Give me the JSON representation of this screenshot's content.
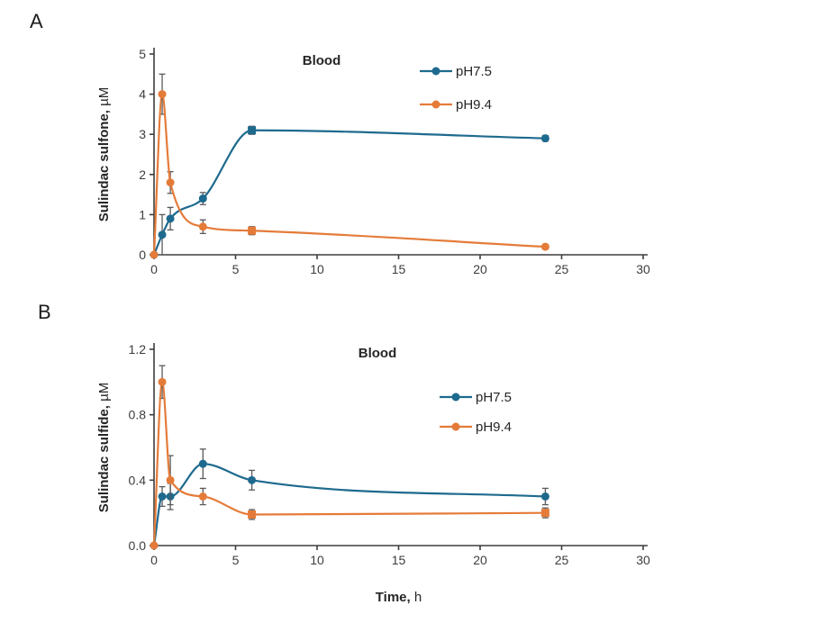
{
  "panels": [
    {
      "letter": "A"
    },
    {
      "letter": "B"
    }
  ],
  "colors": {
    "series_ph75": "#1e6a8e",
    "series_ph94": "#e57b39",
    "axis": "#3d3d3d",
    "error_bar": "#5a5a5a",
    "tick_text": "#3d3d3d",
    "title_text": "#262626",
    "background": "#ffffff"
  },
  "chart_data": [
    {
      "type": "line",
      "panel": "A",
      "title": "Blood",
      "ylabel_bold": "Sulindac sulfone,",
      "ylabel_regular": " µM",
      "xlabel_bold": "",
      "xlabel_regular": "",
      "xlim": [
        0,
        30
      ],
      "ylim": [
        0,
        5
      ],
      "xticks": [
        0,
        5,
        10,
        15,
        20,
        25,
        30
      ],
      "xtick_labels": [
        "0",
        "5",
        "10",
        "15",
        "20",
        "25",
        "30"
      ],
      "yticks": [
        0,
        1,
        2,
        3,
        4,
        5
      ],
      "ytick_labels": [
        "0",
        "1",
        "2",
        "3",
        "4",
        "5"
      ],
      "grid": false,
      "legend_position": "inside-top-right",
      "series": [
        {
          "name": "pH7.5",
          "color_key": "series_ph75",
          "x": [
            0,
            0.5,
            1,
            3,
            6,
            24
          ],
          "y": [
            0,
            0.5,
            0.9,
            1.4,
            3.1,
            2.9
          ],
          "yerr": [
            0,
            0.5,
            0.28,
            0.15,
            0.1,
            0.07
          ],
          "markers": [
            "circle",
            "circle",
            "circle",
            "circle",
            "square",
            "circle"
          ]
        },
        {
          "name": "pH9.4",
          "color_key": "series_ph94",
          "x": [
            0,
            0.5,
            1,
            3,
            6,
            24
          ],
          "y": [
            0,
            4.0,
            1.8,
            0.7,
            0.6,
            0.2
          ],
          "yerr": [
            0,
            0.5,
            0.27,
            0.17,
            0.1,
            0.05
          ],
          "markers": [
            "circle",
            "circle",
            "circle",
            "circle",
            "square",
            "circle"
          ]
        }
      ]
    },
    {
      "type": "line",
      "panel": "B",
      "title": "Blood",
      "ylabel_bold": "Sulindac sulfide,",
      "ylabel_regular": " µM",
      "xlabel_bold": "Time,",
      "xlabel_regular": " h",
      "xlim": [
        0,
        30
      ],
      "ylim": [
        0,
        1.2
      ],
      "xticks": [
        0,
        5,
        10,
        15,
        20,
        25,
        30
      ],
      "xtick_labels": [
        "0",
        "5",
        "10",
        "15",
        "20",
        "25",
        "30"
      ],
      "yticks": [
        0,
        0.4,
        0.8,
        1.2
      ],
      "ytick_labels": [
        "0.0",
        "0.4",
        "0.8",
        "1.2"
      ],
      "grid": false,
      "legend_position": "inside-top-right",
      "series": [
        {
          "name": "pH7.5",
          "color_key": "series_ph75",
          "x": [
            0,
            0.5,
            1,
            3,
            6,
            24
          ],
          "y": [
            0,
            0.3,
            0.3,
            0.5,
            0.4,
            0.3
          ],
          "yerr": [
            0,
            0.06,
            0.08,
            0.09,
            0.06,
            0.05
          ],
          "markers": [
            "circle",
            "circle",
            "circle",
            "circle",
            "circle",
            "circle"
          ]
        },
        {
          "name": "pH9.4",
          "color_key": "series_ph94",
          "x": [
            0,
            0.5,
            1,
            3,
            6,
            24
          ],
          "y": [
            0,
            1.0,
            0.4,
            0.3,
            0.19,
            0.2
          ],
          "yerr": [
            0,
            0.1,
            0.15,
            0.05,
            0.03,
            0.03
          ],
          "markers": [
            "circle",
            "circle",
            "circle",
            "circle",
            "square",
            "square"
          ]
        }
      ]
    }
  ]
}
